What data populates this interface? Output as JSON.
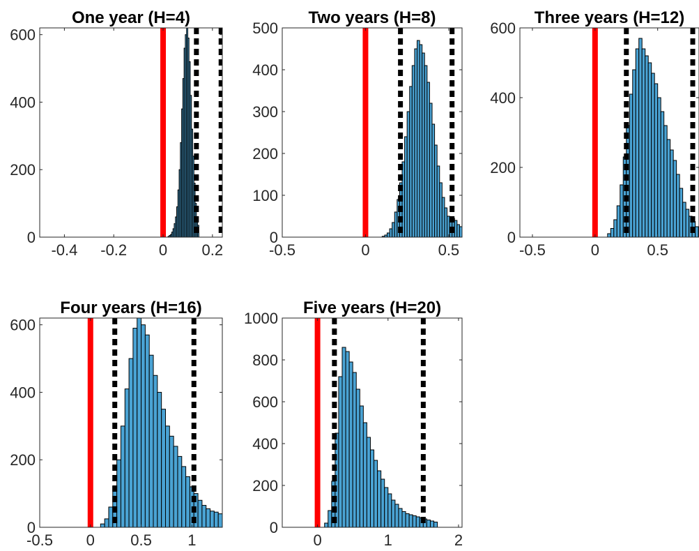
{
  "colors": {
    "bar_fill": "#4aa3d4",
    "bar_edge": "#000000",
    "zero_line": "#ff0000",
    "ci_line": "#000000",
    "axis": "#262626"
  },
  "chart_data": [
    {
      "type": "bar",
      "title": "One year (H=4)",
      "xlim": [
        -0.5,
        0.24
      ],
      "ylim": [
        0,
        620
      ],
      "xticks": [
        -0.4,
        -0.2,
        0,
        0.2
      ],
      "xtick_labels": [
        "-0.4",
        "-0.2",
        "0",
        "0.2"
      ],
      "yticks": [
        0,
        200,
        400,
        600
      ],
      "ytick_labels": [
        "0",
        "200",
        "400",
        "600"
      ],
      "bin_start": 0.02,
      "bin_width": 0.005,
      "values": [
        2,
        5,
        8,
        15,
        25,
        40,
        60,
        90,
        140,
        200,
        280,
        380,
        470,
        560,
        600,
        620,
        590,
        520,
        420,
        320,
        240,
        160,
        100,
        60,
        35
      ],
      "zero_line": 0,
      "ci_lines": [
        0.135,
        0.235
      ]
    },
    {
      "type": "bar",
      "title": "Two years (H=8)",
      "xlim": [
        -0.5,
        0.58
      ],
      "ylim": [
        0,
        500
      ],
      "xticks": [
        -0.5,
        0,
        0.5
      ],
      "xtick_labels": [
        "-0.5",
        "0",
        "0.5"
      ],
      "yticks": [
        0,
        100,
        200,
        300,
        400,
        500
      ],
      "ytick_labels": [
        "0",
        "100",
        "200",
        "300",
        "400",
        "500"
      ],
      "bin_start": 0.1,
      "bin_width": 0.015,
      "values": [
        2,
        5,
        10,
        20,
        35,
        60,
        90,
        130,
        180,
        240,
        300,
        360,
        410,
        450,
        470,
        460,
        440,
        410,
        370,
        320,
        270,
        220,
        170,
        130,
        95,
        70,
        50,
        40,
        45,
        40,
        30,
        25
      ],
      "zero_line": 0,
      "ci_lines": [
        0.21,
        0.52
      ]
    },
    {
      "type": "bar",
      "title": "Three years (H=12)",
      "xlim": [
        -0.6,
        0.83
      ],
      "ylim": [
        0,
        600
      ],
      "xticks": [
        -0.5,
        0,
        0.5
      ],
      "xtick_labels": [
        "-0.5",
        "0",
        "0.5"
      ],
      "yticks": [
        0,
        200,
        400,
        600
      ],
      "ytick_labels": [
        "0",
        "200",
        "400",
        "600"
      ],
      "bin_start": 0.1,
      "bin_width": 0.025,
      "values": [
        10,
        25,
        50,
        90,
        150,
        230,
        320,
        410,
        480,
        540,
        570,
        540,
        520,
        500,
        470,
        440,
        400,
        360,
        320,
        280,
        250,
        220,
        180,
        140,
        100,
        80,
        60,
        45,
        30
      ],
      "zero_line": 0,
      "ci_lines": [
        0.25,
        0.78
      ]
    },
    {
      "type": "bar",
      "title": "Four years (H=16)",
      "xlim": [
        -0.5,
        1.3
      ],
      "ylim": [
        0,
        620
      ],
      "xticks": [
        -0.5,
        0,
        0.5,
        1
      ],
      "xtick_labels": [
        "-0.5",
        "0",
        "0.5",
        "1"
      ],
      "yticks": [
        0,
        200,
        400,
        600
      ],
      "ytick_labels": [
        "0",
        "200",
        "400",
        "600"
      ],
      "bin_start": 0.1,
      "bin_width": 0.04,
      "values": [
        10,
        25,
        60,
        120,
        200,
        300,
        410,
        500,
        590,
        620,
        600,
        570,
        510,
        450,
        400,
        350,
        300,
        270,
        240,
        210,
        180,
        150,
        120,
        100,
        80,
        65,
        55,
        48,
        45,
        40
      ],
      "zero_line": 0,
      "ci_lines": [
        0.24,
        1.02
      ]
    },
    {
      "type": "bar",
      "title": "Five years (H=20)",
      "xlim": [
        -0.5,
        2.05
      ],
      "ylim": [
        0,
        1000
      ],
      "xticks": [
        0,
        1,
        2
      ],
      "xtick_labels": [
        "0",
        "1",
        "2"
      ],
      "yticks": [
        0,
        200,
        400,
        600,
        800,
        1000
      ],
      "ytick_labels": [
        "0",
        "200",
        "400",
        "600",
        "800",
        "1000"
      ],
      "bin_start": 0.1,
      "bin_width": 0.05,
      "values": [
        20,
        80,
        220,
        450,
        720,
        860,
        840,
        790,
        740,
        660,
        580,
        500,
        430,
        370,
        320,
        270,
        230,
        190,
        160,
        130,
        110,
        90,
        75,
        65,
        60,
        55,
        50,
        45,
        40,
        35,
        30,
        25
      ],
      "zero_line": 0,
      "ci_lines": [
        0.24,
        1.5
      ]
    }
  ]
}
